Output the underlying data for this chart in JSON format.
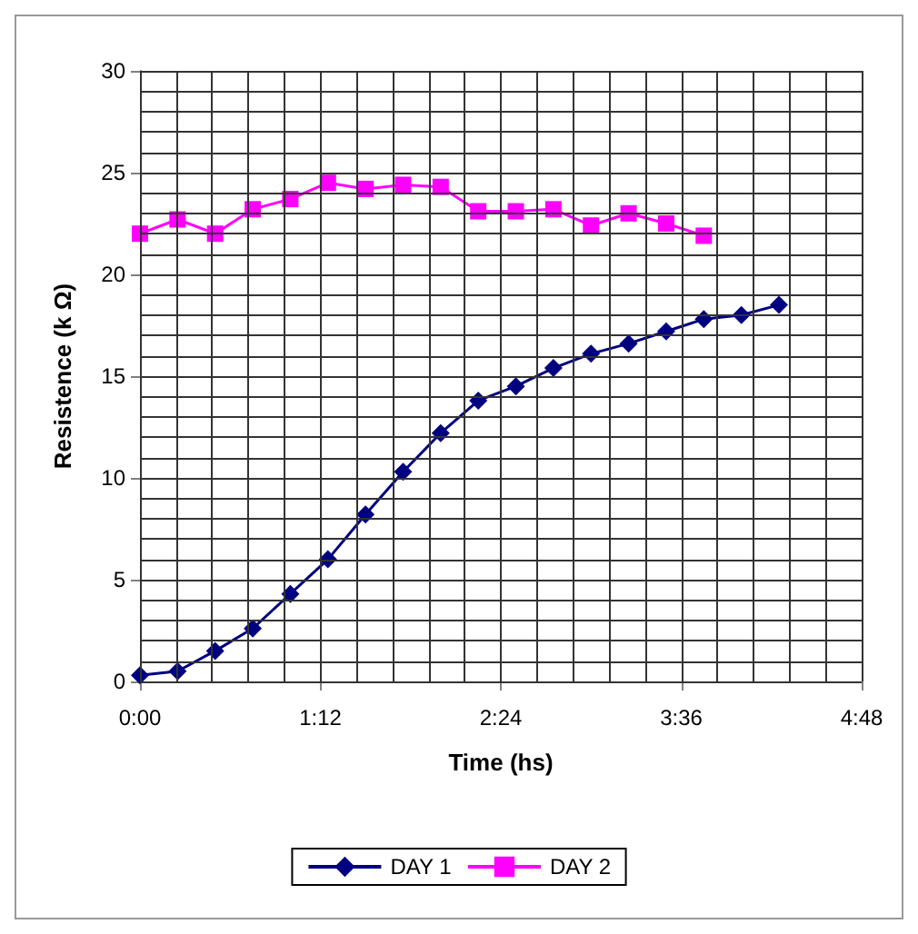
{
  "chart_data": {
    "type": "line",
    "xlabel": "Time (hs)",
    "ylabel": "Resistence (k Ω)",
    "xlim": [
      0,
      4.8
    ],
    "xticks": [
      {
        "value": 0,
        "label": "0:00"
      },
      {
        "value": 1.2,
        "label": "1:12"
      },
      {
        "value": 2.4,
        "label": "2:24"
      },
      {
        "value": 3.6,
        "label": "3:36"
      },
      {
        "value": 4.8,
        "label": "4:48"
      }
    ],
    "ylim": [
      0,
      30
    ],
    "yticks": [
      0,
      5,
      10,
      15,
      20,
      25,
      30
    ],
    "grid": true,
    "legend": "bottom",
    "series": [
      {
        "name": "DAY 1",
        "color": "#000080",
        "marker": "diamond",
        "x": [
          0,
          0.25,
          0.5,
          0.75,
          1,
          1.25,
          1.5,
          1.75,
          2,
          2.25,
          2.5,
          2.75,
          3,
          3.25,
          3.5,
          3.75,
          4,
          4.25
        ],
        "values": [
          0.3,
          0.5,
          1.5,
          2.6,
          4.3,
          6.0,
          8.2,
          10.3,
          12.2,
          13.8,
          14.5,
          15.4,
          16.1,
          16.6,
          17.2,
          17.8,
          18.0,
          18.5
        ]
      },
      {
        "name": "DAY 2",
        "color": "#ff00ff",
        "marker": "square",
        "x": [
          0,
          0.25,
          0.5,
          0.75,
          1,
          1.25,
          1.5,
          1.75,
          2,
          2.25,
          2.5,
          2.75,
          3,
          3.25,
          3.5,
          3.75
        ],
        "values": [
          22.0,
          22.7,
          22.0,
          23.2,
          23.7,
          24.5,
          24.2,
          24.4,
          24.3,
          23.1,
          23.1,
          23.2,
          22.4,
          23.0,
          22.5,
          21.9
        ]
      }
    ]
  }
}
